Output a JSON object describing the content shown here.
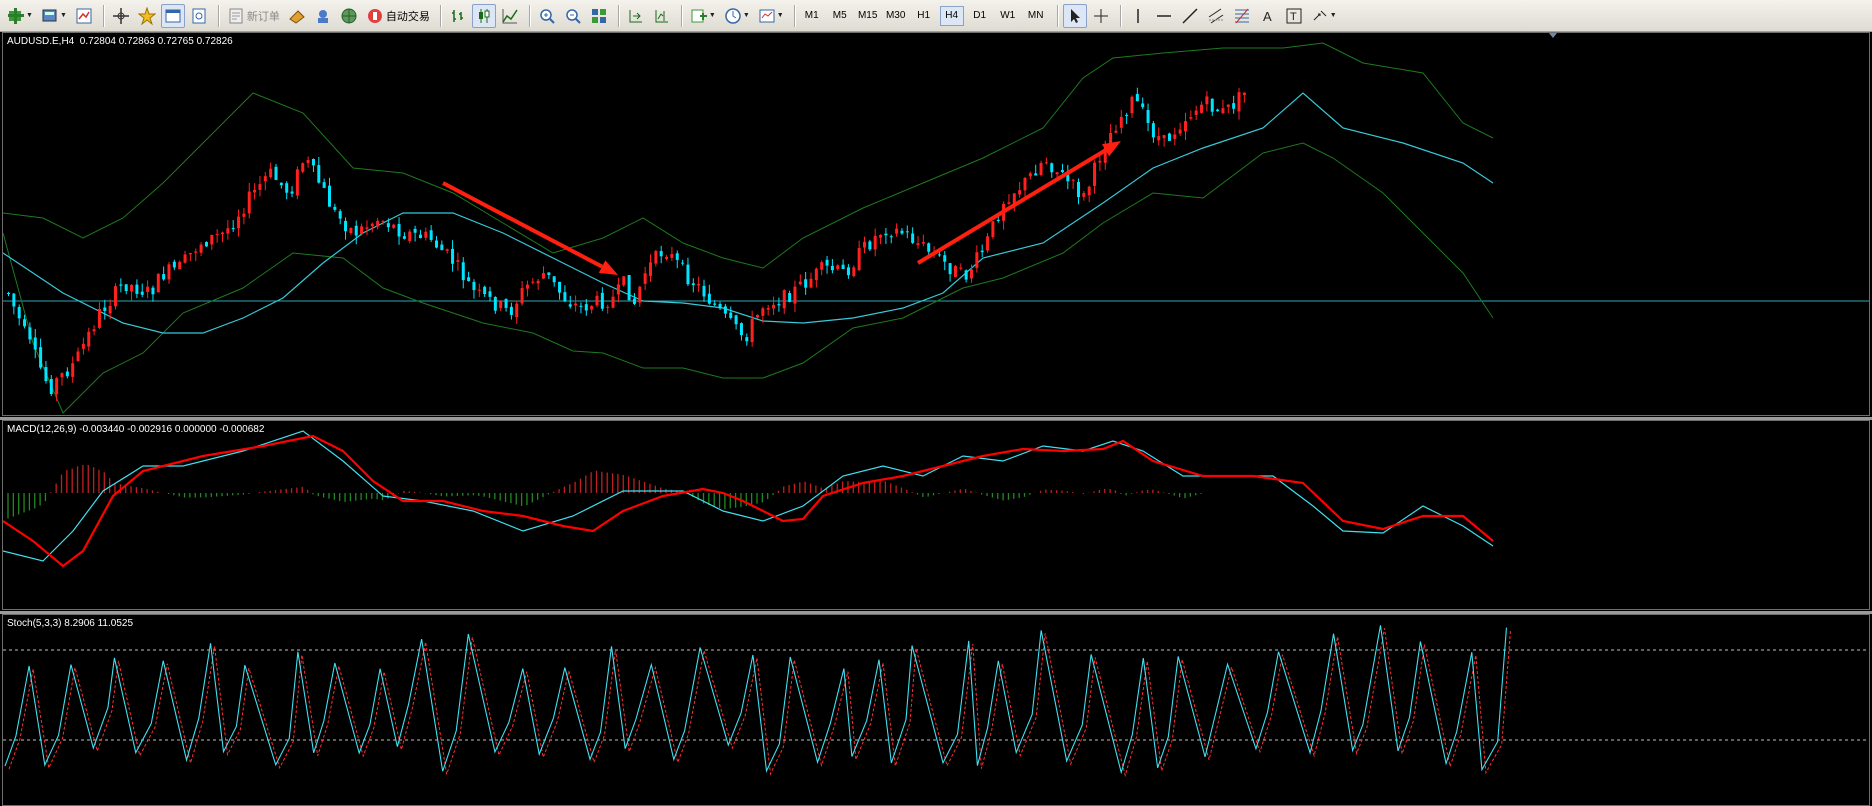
{
  "toolbar": {
    "new_order_label": "新订单",
    "auto_trading_label": "自动交易",
    "timeframes": [
      "M1",
      "M5",
      "M15",
      "M30",
      "H1",
      "H4",
      "D1",
      "W1",
      "MN"
    ],
    "active_timeframe": "H4"
  },
  "colors": {
    "bull": "#ff2020",
    "bear": "#00e5ff",
    "ma": "#38c8d8",
    "bollinger": "#1e7a1e",
    "macd_signal": "#ff0000",
    "macd_main": "#40e0f0",
    "stoch_main": "#40e0f0",
    "stoch_signal": "#ff3030",
    "arrow": "#ff2010"
  },
  "price_pane": {
    "label": "AUDUSD.E,H4  0.72804 0.72863 0.72765 0.72826"
  },
  "macd_pane": {
    "label": "MACD(12,26,9) -0.003440 -0.002916 0.000000 -0.000682"
  },
  "stoch_pane": {
    "label": "Stoch(5,3,3) 8.2906 11.0525",
    "levels": [
      80,
      20
    ]
  }
}
